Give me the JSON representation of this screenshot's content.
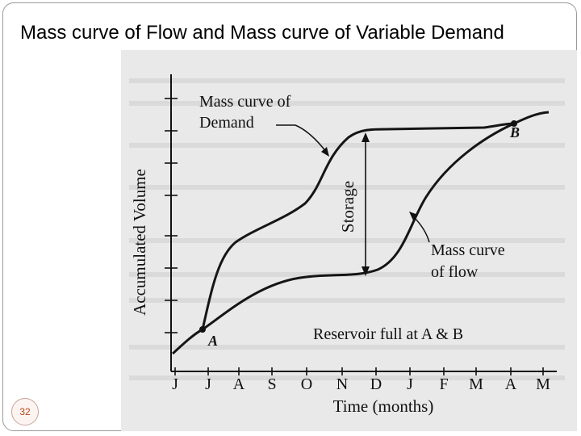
{
  "slide": {
    "title": "Mass curve of Flow and Mass curve of Variable Demand",
    "page_number": "32"
  },
  "figure": {
    "y_axis_label": "Accumulated Volume",
    "x_axis_label": "Time (months)",
    "x_ticks": [
      "J",
      "J",
      "A",
      "S",
      "O",
      "N",
      "D",
      "J",
      "F",
      "M",
      "A",
      "M"
    ],
    "demand_label_line1": "Mass curve of",
    "demand_label_line2": "Demand",
    "flow_label_line1": "Mass curve",
    "flow_label_line2": "of flow",
    "storage_label": "Storage",
    "point_a": "A",
    "point_b": "B",
    "reservoir_note": "Reservoir full at A & B"
  }
}
